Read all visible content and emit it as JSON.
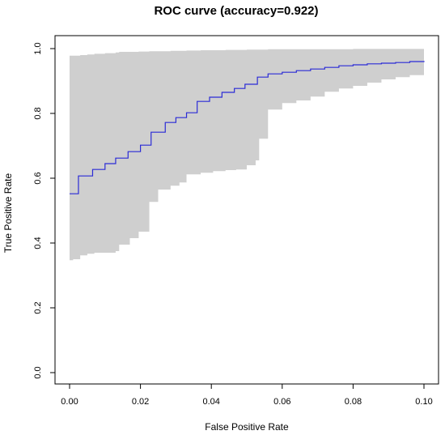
{
  "chart_data": {
    "type": "line",
    "title": "ROC curve (accuracy=0.922)",
    "xlabel": "False Positive Rate",
    "ylabel": "True Positive Rate",
    "xlim": [
      0,
      0.1
    ],
    "ylim": [
      0,
      1
    ],
    "xticks": [
      0.0,
      0.02,
      0.04,
      0.06,
      0.08,
      0.1
    ],
    "yticks": [
      0.0,
      0.2,
      0.4,
      0.6,
      0.8,
      1.0
    ],
    "xtick_labels": [
      "0.00",
      "0.02",
      "0.04",
      "0.06",
      "0.08",
      "0.10"
    ],
    "ytick_labels": [
      "0.0",
      "0.2",
      "0.4",
      "0.6",
      "0.8",
      "1.0"
    ],
    "grid": false,
    "colors": {
      "line": "#2b2bd6",
      "band": "#cfcfcf",
      "axis": "#000000"
    },
    "series": [
      {
        "type": "step",
        "x": [
          0.0,
          0.0025,
          0.0065,
          0.01,
          0.013,
          0.0165,
          0.02,
          0.023,
          0.027,
          0.03,
          0.033,
          0.036,
          0.0395,
          0.043,
          0.0465,
          0.0495,
          0.053,
          0.056,
          0.06,
          0.064,
          0.068,
          0.072,
          0.076,
          0.08,
          0.084,
          0.088,
          0.092,
          0.096,
          0.1
        ],
        "y": [
          0.552,
          0.607,
          0.627,
          0.645,
          0.662,
          0.682,
          0.702,
          0.742,
          0.772,
          0.787,
          0.802,
          0.837,
          0.85,
          0.865,
          0.877,
          0.89,
          0.912,
          0.922,
          0.927,
          0.932,
          0.937,
          0.942,
          0.947,
          0.95,
          0.953,
          0.955,
          0.957,
          0.96,
          0.962
        ]
      },
      {
        "type": "band",
        "x": [
          0.0,
          0.001,
          0.003,
          0.005,
          0.007,
          0.01,
          0.013,
          0.014,
          0.017,
          0.0195,
          0.0225,
          0.025,
          0.0285,
          0.031,
          0.033,
          0.037,
          0.0405,
          0.044,
          0.047,
          0.05,
          0.0525,
          0.0535,
          0.056,
          0.06,
          0.064,
          0.068,
          0.072,
          0.076,
          0.08,
          0.084,
          0.088,
          0.092,
          0.096,
          0.1
        ],
        "lower": [
          0.347,
          0.35,
          0.362,
          0.367,
          0.37,
          0.37,
          0.375,
          0.395,
          0.415,
          0.435,
          0.527,
          0.565,
          0.577,
          0.587,
          0.612,
          0.617,
          0.622,
          0.625,
          0.627,
          0.64,
          0.655,
          0.722,
          0.812,
          0.832,
          0.84,
          0.852,
          0.867,
          0.877,
          0.885,
          0.895,
          0.905,
          0.912,
          0.918,
          0.92
        ],
        "upper": [
          0.978,
          0.978,
          0.98,
          0.982,
          0.984,
          0.986,
          0.988,
          0.99,
          0.99,
          0.991,
          0.992,
          0.992,
          0.993,
          0.993,
          0.994,
          0.995,
          0.995,
          0.996,
          0.996,
          0.997,
          0.997,
          0.997,
          0.998,
          0.998,
          0.998,
          0.998,
          0.998,
          0.998,
          0.999,
          0.999,
          0.999,
          0.999,
          0.999,
          1.0
        ]
      }
    ]
  }
}
